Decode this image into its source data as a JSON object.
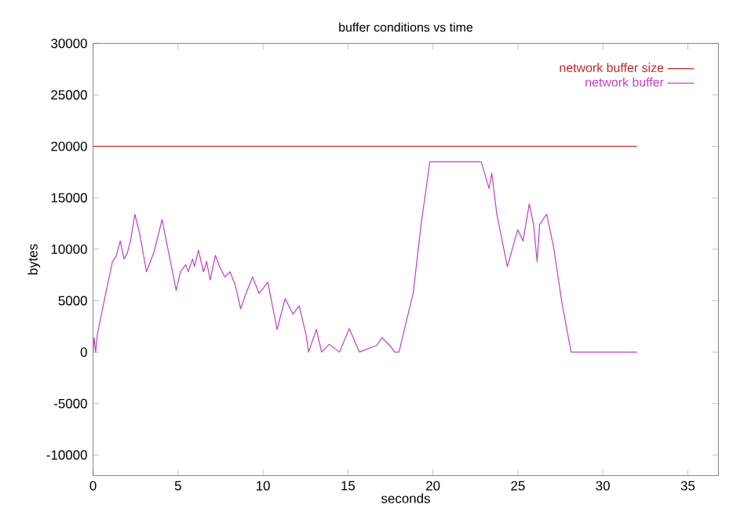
{
  "chart_data": {
    "type": "line",
    "title": "buffer conditions vs time",
    "xlabel": "seconds",
    "ylabel": "bytes",
    "xlim": [
      0,
      36.8
    ],
    "ylim": [
      -12000,
      30000
    ],
    "xticks": [
      0,
      5,
      10,
      15,
      20,
      25,
      30,
      35
    ],
    "yticks": [
      -10000,
      -5000,
      0,
      5000,
      10000,
      15000,
      20000,
      25000,
      30000
    ],
    "legend": "top right",
    "grid": false,
    "series": [
      {
        "name": "network buffer size",
        "color": "#c0282a",
        "x": [
          0,
          32
        ],
        "values": [
          20000,
          20000
        ]
      },
      {
        "name": "network buffer",
        "color": "#c040c8",
        "x": [
          0,
          0.06,
          0.15,
          0.25,
          0.68,
          1.14,
          1.35,
          1.6,
          1.82,
          2.0,
          2.2,
          2.46,
          2.77,
          3.14,
          3.6,
          4.06,
          4.37,
          4.89,
          5.14,
          5.45,
          5.6,
          5.85,
          5.97,
          6.2,
          6.5,
          6.68,
          6.89,
          7.2,
          7.45,
          7.75,
          8.06,
          8.37,
          8.68,
          9.0,
          9.39,
          9.76,
          10.06,
          10.28,
          10.53,
          10.83,
          11.3,
          11.76,
          12.13,
          12.53,
          12.68,
          13.14,
          13.45,
          13.9,
          14.5,
          15.08,
          15.67,
          16.7,
          17.0,
          17.45,
          17.76,
          18.0,
          18.84,
          19.3,
          19.82,
          22.84,
          23.3,
          23.46,
          23.76,
          24.38,
          24.99,
          25.3,
          25.67,
          25.92,
          26.13,
          26.28,
          26.69,
          27.09,
          27.6,
          28.13,
          32
        ],
        "values": [
          0,
          1400,
          0,
          1700,
          5200,
          8800,
          9300,
          10800,
          9050,
          9550,
          10800,
          13400,
          11300,
          7800,
          9800,
          12900,
          10300,
          6000,
          7800,
          8500,
          7800,
          9050,
          8300,
          9900,
          7800,
          8800,
          7000,
          9400,
          8300,
          7300,
          7800,
          6500,
          4200,
          5700,
          7300,
          5700,
          6300,
          6800,
          4700,
          2200,
          5200,
          3700,
          4500,
          1700,
          0,
          2200,
          0,
          760,
          0,
          2300,
          0,
          660,
          1400,
          660,
          0,
          0,
          5750,
          12400,
          18500,
          18500,
          15900,
          17400,
          13400,
          8300,
          11900,
          10800,
          14400,
          12400,
          8800,
          12400,
          13400,
          10300,
          4700,
          0,
          0
        ]
      }
    ]
  }
}
